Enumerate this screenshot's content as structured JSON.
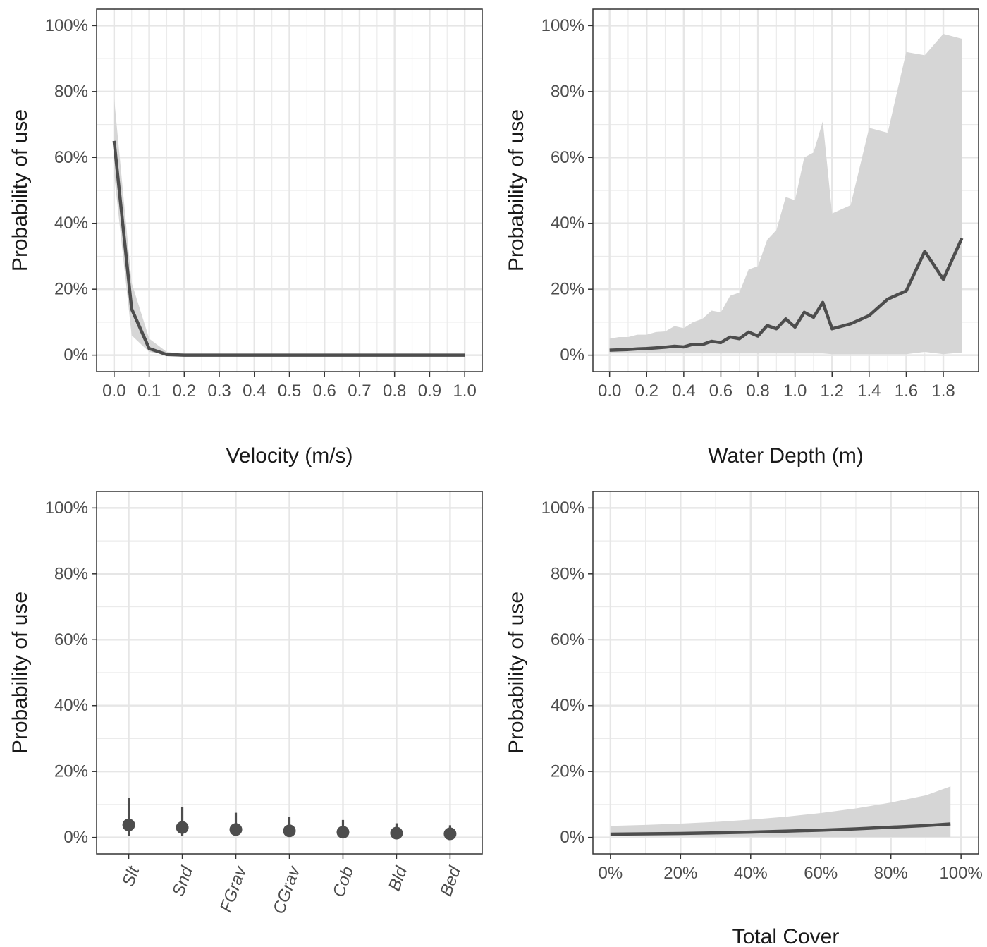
{
  "chart_data": [
    {
      "type": "line",
      "xlabel": "Velocity (m/s)",
      "ylabel": "Probability of use",
      "xlim": [
        -0.05,
        1.05
      ],
      "ylim": [
        -0.05,
        1.05
      ],
      "x_ticks": [
        0.0,
        0.1,
        0.2,
        0.3,
        0.4,
        0.5,
        0.6,
        0.7,
        0.8,
        0.9,
        1.0
      ],
      "x_tick_labels": [
        "0.0",
        "0.1",
        "0.2",
        "0.3",
        "0.4",
        "0.5",
        "0.6",
        "0.7",
        "0.8",
        "0.9",
        "1.0"
      ],
      "y_ticks": [
        0,
        0.2,
        0.4,
        0.6,
        0.8,
        1.0
      ],
      "y_tick_labels": [
        "0%",
        "20%",
        "40%",
        "60%",
        "80%",
        "100%"
      ],
      "grid": true,
      "x": [
        0.0,
        0.05,
        0.1,
        0.15,
        0.2,
        0.3,
        0.4,
        0.5,
        0.6,
        0.7,
        0.8,
        0.9,
        1.0
      ],
      "y": [
        0.65,
        0.14,
        0.02,
        0.002,
        0.0,
        0.0,
        0.0,
        0.0,
        0.0,
        0.0,
        0.0,
        0.0,
        0.0
      ],
      "lower": [
        0.55,
        0.06,
        0.01,
        0.001,
        0.0,
        0.0,
        0.0,
        0.0,
        0.0,
        0.0,
        0.0,
        0.0,
        0.0
      ],
      "upper": [
        0.78,
        0.22,
        0.05,
        0.01,
        0.003,
        0.002,
        0.001,
        0.001,
        0.001,
        0.0,
        0.0,
        0.0,
        0.0
      ]
    },
    {
      "type": "line",
      "xlabel": "Water Depth (m)",
      "ylabel": "Probability of use",
      "xlim": [
        -0.09,
        1.99
      ],
      "ylim": [
        -0.05,
        1.05
      ],
      "x_ticks": [
        0.0,
        0.2,
        0.4,
        0.6,
        0.8,
        1.0,
        1.2,
        1.4,
        1.6,
        1.8
      ],
      "x_tick_labels": [
        "0.0",
        "0.2",
        "0.4",
        "0.6",
        "0.8",
        "1.0",
        "1.2",
        "1.4",
        "1.6",
        "1.8"
      ],
      "y_ticks": [
        0,
        0.2,
        0.4,
        0.6,
        0.8,
        1.0
      ],
      "y_tick_labels": [
        "0%",
        "20%",
        "40%",
        "60%",
        "80%",
        "100%"
      ],
      "grid": true,
      "x": [
        0.0,
        0.05,
        0.1,
        0.15,
        0.2,
        0.25,
        0.3,
        0.35,
        0.4,
        0.45,
        0.5,
        0.55,
        0.6,
        0.65,
        0.7,
        0.75,
        0.8,
        0.85,
        0.9,
        0.95,
        1.0,
        1.05,
        1.1,
        1.15,
        1.2,
        1.3,
        1.4,
        1.5,
        1.6,
        1.7,
        1.8,
        1.9
      ],
      "y": [
        0.015,
        0.016,
        0.017,
        0.019,
        0.02,
        0.022,
        0.024,
        0.027,
        0.025,
        0.033,
        0.032,
        0.042,
        0.038,
        0.055,
        0.05,
        0.07,
        0.058,
        0.09,
        0.08,
        0.11,
        0.085,
        0.13,
        0.115,
        0.16,
        0.08,
        0.095,
        0.12,
        0.17,
        0.195,
        0.315,
        0.23,
        0.355
      ],
      "lower": [
        0.005,
        0.005,
        0.005,
        0.005,
        0.005,
        0.005,
        0.005,
        0.005,
        0.005,
        0.005,
        0.005,
        0.005,
        0.005,
        0.005,
        0.005,
        0.005,
        0.005,
        0.005,
        0.005,
        0.005,
        0.005,
        0.005,
        0.005,
        0.005,
        0.003,
        0.003,
        0.003,
        0.003,
        0.003,
        0.01,
        0.003,
        0.008
      ],
      "upper": [
        0.05,
        0.055,
        0.055,
        0.062,
        0.062,
        0.07,
        0.072,
        0.088,
        0.082,
        0.1,
        0.11,
        0.135,
        0.13,
        0.18,
        0.19,
        0.26,
        0.27,
        0.35,
        0.38,
        0.48,
        0.47,
        0.6,
        0.615,
        0.71,
        0.43,
        0.455,
        0.69,
        0.675,
        0.92,
        0.91,
        0.975,
        0.96
      ]
    },
    {
      "type": "scatter",
      "xlabel": "",
      "ylabel": "Probability of use",
      "ylim": [
        -0.05,
        1.05
      ],
      "categories": [
        "Slt",
        "Snd",
        "FGrav",
        "CGrav",
        "Cob",
        "Bld",
        "Bed"
      ],
      "y_ticks": [
        0,
        0.2,
        0.4,
        0.6,
        0.8,
        1.0
      ],
      "y_tick_labels": [
        "0%",
        "20%",
        "40%",
        "60%",
        "80%",
        "100%"
      ],
      "grid": true,
      "values": [
        0.038,
        0.03,
        0.024,
        0.02,
        0.016,
        0.013,
        0.011
      ],
      "lower": [
        0.005,
        0.005,
        0.004,
        0.004,
        0.003,
        0.003,
        0.002
      ],
      "upper": [
        0.12,
        0.093,
        0.075,
        0.063,
        0.053,
        0.043,
        0.037
      ]
    },
    {
      "type": "line",
      "xlabel": "Total Cover",
      "ylabel": "Probability of use",
      "xlim": [
        -0.05,
        1.05
      ],
      "ylim": [
        -0.05,
        1.05
      ],
      "x_ticks": [
        0,
        0.2,
        0.4,
        0.6,
        0.8,
        1.0
      ],
      "x_tick_labels": [
        "0%",
        "20%",
        "40%",
        "60%",
        "80%",
        "100%"
      ],
      "y_ticks": [
        0,
        0.2,
        0.4,
        0.6,
        0.8,
        1.0
      ],
      "y_tick_labels": [
        "0%",
        "20%",
        "40%",
        "60%",
        "80%",
        "100%"
      ],
      "grid": true,
      "x": [
        0.0,
        0.1,
        0.2,
        0.3,
        0.4,
        0.5,
        0.6,
        0.7,
        0.8,
        0.9,
        0.97
      ],
      "y": [
        0.01,
        0.011,
        0.012,
        0.014,
        0.016,
        0.019,
        0.022,
        0.026,
        0.031,
        0.036,
        0.041
      ],
      "lower": [
        0.004,
        0.003,
        0.003,
        0.002,
        0.002,
        0.002,
        0.001,
        0.001,
        0.001,
        0.001,
        0.001
      ],
      "upper": [
        0.035,
        0.038,
        0.042,
        0.047,
        0.054,
        0.063,
        0.074,
        0.088,
        0.106,
        0.128,
        0.155
      ]
    }
  ]
}
